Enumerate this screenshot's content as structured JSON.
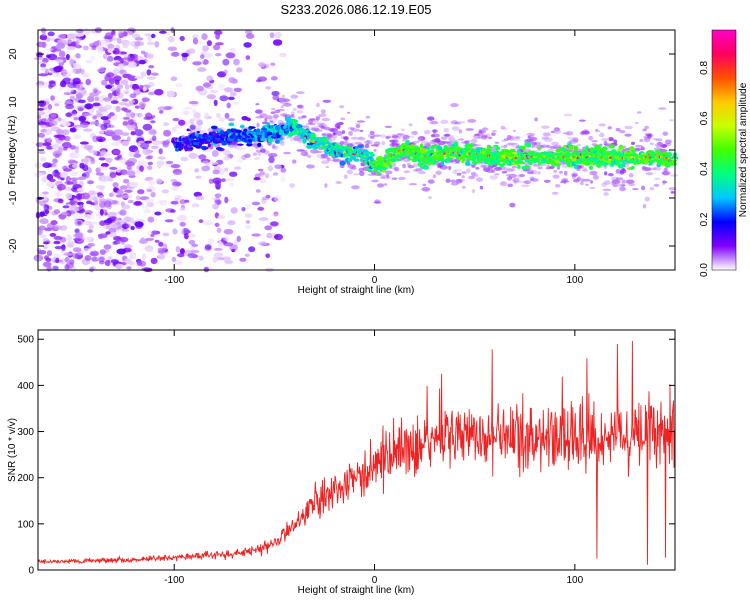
{
  "title": "S233.2026.086.12.19.E05",
  "chart_data": [
    {
      "type": "heatmap",
      "xlabel": "Height of straight line (km)",
      "ylabel": "Frequency (Hz)",
      "xlim": [
        -168,
        150
      ],
      "ylim": [
        -25,
        25
      ],
      "xticks": [
        -100,
        0,
        100
      ],
      "yticks": [
        -20,
        -10,
        0,
        10,
        20
      ],
      "colorbar": {
        "label": "Normalized spectral amplitude",
        "range": [
          0,
          0.95
        ],
        "ticks": [
          0.0,
          0.2,
          0.4,
          0.6,
          0.8
        ],
        "colormap": [
          "#ffffff",
          "#8000ff",
          "#0000ff",
          "#00c8ff",
          "#00ff80",
          "#40ff00",
          "#c8ff00",
          "#ffc800",
          "#ff5000",
          "#ff0060",
          "#ff00c8"
        ]
      },
      "ridge": {
        "x": [
          -100,
          -80,
          -60,
          -45,
          -40,
          -35,
          -25,
          -15,
          -5,
          0,
          5,
          10,
          15,
          25,
          40,
          60,
          80,
          100,
          120,
          140,
          150
        ],
        "y": [
          1.5,
          2.5,
          3.0,
          4.5,
          5.0,
          3.0,
          1.0,
          -0.5,
          -1.0,
          -3.0,
          -2.5,
          -1.0,
          0.0,
          -1.5,
          -0.5,
          -1.5,
          -1.5,
          -1.5,
          -1.5,
          -1.5,
          -2.0
        ]
      }
    },
    {
      "type": "line",
      "xlabel": "Height of straight line (km)",
      "ylabel": "SNR (10 * v/v)",
      "xlim": [
        -168,
        150
      ],
      "ylim": [
        0,
        520
      ],
      "xticks": [
        -100,
        0,
        100
      ],
      "yticks": [
        0,
        100,
        200,
        300,
        400,
        500
      ],
      "color": "#ee2222",
      "envelope": {
        "x": [
          -168,
          -120,
          -100,
          -80,
          -60,
          -50,
          -40,
          -30,
          -20,
          -10,
          0,
          10,
          20,
          30,
          40,
          60,
          80,
          100,
          120,
          140,
          150
        ],
        "y": [
          18,
          22,
          28,
          32,
          40,
          60,
          95,
          135,
          175,
          200,
          225,
          255,
          270,
          280,
          285,
          290,
          285,
          290,
          290,
          300,
          300
        ]
      }
    }
  ]
}
